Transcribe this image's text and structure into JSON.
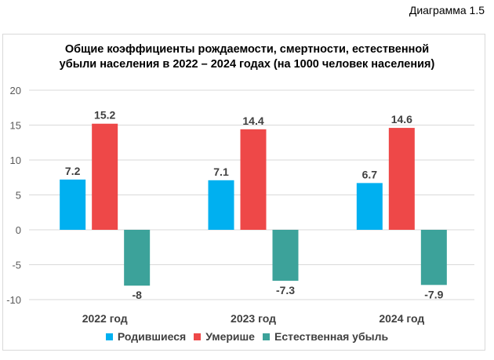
{
  "caption": "Диаграмма 1.5",
  "chart_data": {
    "type": "bar",
    "title_line1": "Общие коэффициенты рождаемости, смертности, естественной",
    "title_line2": "убыли населения в 2022 – 2024 годах (на 1000 человек населения)",
    "categories": [
      "2022 год",
      "2023 год",
      "2024 год"
    ],
    "series": [
      {
        "name": "Родившиеся",
        "color": "#00b0f0",
        "values": [
          7.2,
          7.1,
          6.7
        ],
        "labels": [
          "7.2",
          "7.1",
          "6.7"
        ]
      },
      {
        "name": "Умерише",
        "color": "#ee4848",
        "values": [
          15.2,
          14.4,
          14.6
        ],
        "labels": [
          "15.2",
          "14.4",
          "14.6"
        ]
      },
      {
        "name": "Естественная убыль",
        "color": "#3ca29a",
        "values": [
          -8,
          -7.3,
          -7.9
        ],
        "labels": [
          "-8",
          "-7.3",
          "-7.9"
        ]
      }
    ],
    "ylim": [
      -10,
      20
    ],
    "yticks": [
      20,
      15,
      10,
      5,
      0,
      -5,
      -10
    ],
    "grid": true,
    "legend": "bottom"
  }
}
